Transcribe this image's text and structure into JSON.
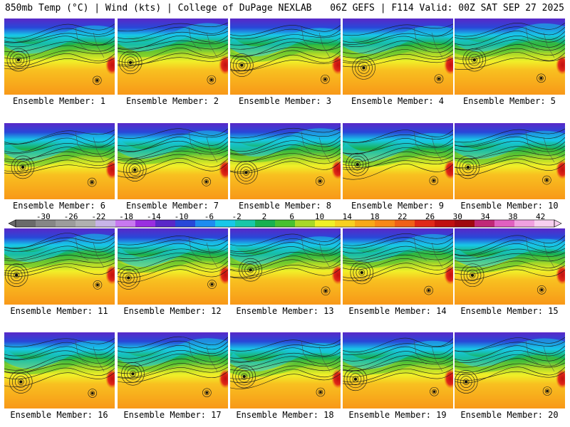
{
  "header": {
    "title_left": "850mb Temp (°C) | Wind (kts) | College of DuPage NEXLAB",
    "title_right": "06Z GEFS | F114 Valid: 00Z SAT SEP 27 2025"
  },
  "panels": [
    {
      "member": "Ensemble Member: 1"
    },
    {
      "member": "Ensemble Member: 2"
    },
    {
      "member": "Ensemble Member: 3"
    },
    {
      "member": "Ensemble Member: 4"
    },
    {
      "member": "Ensemble Member: 5"
    },
    {
      "member": "Ensemble Member: 6"
    },
    {
      "member": "Ensemble Member: 7"
    },
    {
      "member": "Ensemble Member: 8"
    },
    {
      "member": "Ensemble Member: 9"
    },
    {
      "member": "Ensemble Member: 10"
    },
    {
      "member": "Ensemble Member: 11"
    },
    {
      "member": "Ensemble Member: 12"
    },
    {
      "member": "Ensemble Member: 13"
    },
    {
      "member": "Ensemble Member: 14"
    },
    {
      "member": "Ensemble Member: 15"
    },
    {
      "member": "Ensemble Member: 16"
    },
    {
      "member": "Ensemble Member: 17"
    },
    {
      "member": "Ensemble Member: 18"
    },
    {
      "member": "Ensemble Member: 19"
    },
    {
      "member": "Ensemble Member: 20"
    }
  ],
  "colorbar": {
    "labels": [
      "-30",
      "-26",
      "-22",
      "-18",
      "-14",
      "-10",
      "-6",
      "-2",
      "2",
      "6",
      "10",
      "14",
      "18",
      "22",
      "26",
      "30",
      "34",
      "38",
      "42"
    ],
    "colors": [
      "#6a6a6a",
      "#868686",
      "#9c9c9c",
      "#b0b0b0",
      "#c8b4e8",
      "#c878f0",
      "#9a2ee0",
      "#5a28c8",
      "#2848d8",
      "#1e8cf0",
      "#18c8e8",
      "#18c8a8",
      "#18b050",
      "#48c030",
      "#a8d828",
      "#f0f028",
      "#f8d020",
      "#f8a818",
      "#f88818",
      "#f06018",
      "#e02818",
      "#c01010",
      "#a00810",
      "#c02878",
      "#e060c0",
      "#f0a0e0",
      "#f8d0f0"
    ]
  }
}
